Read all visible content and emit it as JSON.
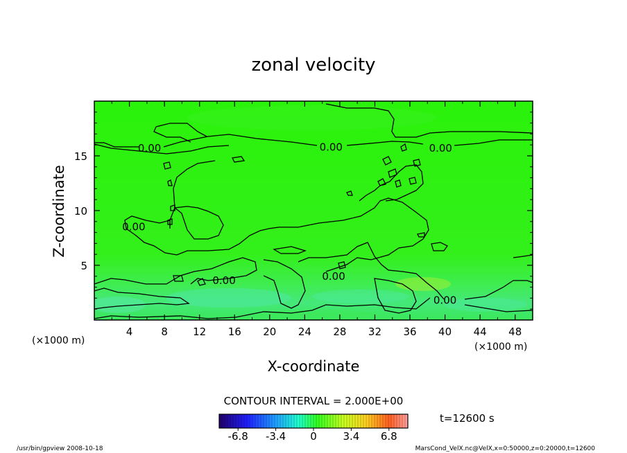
{
  "chart_data": {
    "type": "heatmap",
    "title": "zonal velocity",
    "xlabel": "X-coordinate",
    "ylabel": "Z-coordinate",
    "x_unit": "(×1000 m)",
    "y_unit": "(×1000 m)",
    "xlim": [
      0,
      50
    ],
    "ylim": [
      0,
      20
    ],
    "x_ticks": [
      4,
      8,
      12,
      16,
      20,
      24,
      28,
      32,
      36,
      40,
      44,
      48
    ],
    "y_ticks": [
      5,
      10,
      15
    ],
    "contour_interval_text": "CONTOUR INTERVAL = 2.000E+00",
    "contour_labels": [
      {
        "text": "0.00",
        "x": 6.3,
        "y": 15.7
      },
      {
        "text": "0.00",
        "x": 27.0,
        "y": 15.8
      },
      {
        "text": "0.00",
        "x": 39.5,
        "y": 15.7
      },
      {
        "text": "0.00",
        "x": 4.5,
        "y": 8.5
      },
      {
        "text": "0.00",
        "x": 14.8,
        "y": 3.6
      },
      {
        "text": "0.00",
        "x": 27.3,
        "y": 4.0
      },
      {
        "text": "0.00",
        "x": 40.0,
        "y": 1.8
      }
    ],
    "colorbar": {
      "range": [
        -8.5,
        8.5
      ],
      "ticks": [
        "-6.8",
        "-3.4",
        "0",
        "3.4",
        "6.8"
      ],
      "tick_values": [
        -6.8,
        -3.4,
        0,
        3.4,
        6.8
      ]
    },
    "time_label": "t=12600 s",
    "grid": false
  },
  "footer": {
    "left": "/usr/bin/gpview   2008-10-18",
    "right": "MarsCond_VelX.nc@VelX,x=0:50000,z=0:20000,t=12600"
  },
  "colors": {
    "field_main": "#2cf20d",
    "field_bottom": "#3ee866",
    "contour": "#000000"
  }
}
